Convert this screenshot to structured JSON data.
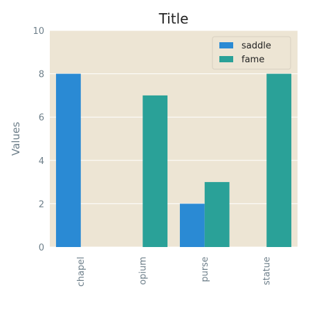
{
  "chart_data": {
    "type": "bar",
    "title": "Title",
    "xlabel": "",
    "ylabel": "Values",
    "categories": [
      "chapel",
      "opium",
      "purse",
      "statue"
    ],
    "series": [
      {
        "name": "saddle",
        "values": [
          8,
          0,
          2,
          0
        ],
        "color": "#2a8ad4"
      },
      {
        "name": "fame",
        "values": [
          0,
          7,
          3,
          8
        ],
        "color": "#2aa198"
      }
    ],
    "ylim": [
      0,
      10
    ],
    "yticks": [
      0,
      2,
      4,
      6,
      8,
      10
    ],
    "grid": true,
    "legend_position": "top-right",
    "colors": {
      "background": "#ede5d4",
      "grid": "#ffffff"
    }
  }
}
